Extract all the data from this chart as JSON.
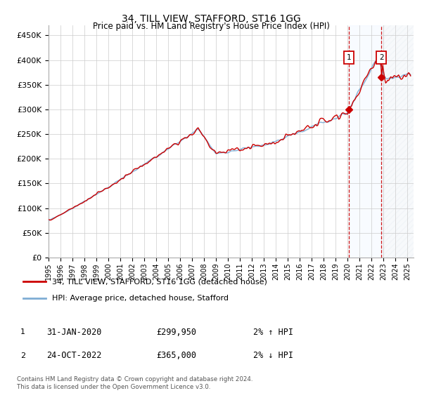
{
  "title": "34, TILL VIEW, STAFFORD, ST16 1GG",
  "subtitle": "Price paid vs. HM Land Registry's House Price Index (HPI)",
  "ylabel_ticks": [
    "£0",
    "£50K",
    "£100K",
    "£150K",
    "£200K",
    "£250K",
    "£300K",
    "£350K",
    "£400K",
    "£450K"
  ],
  "ytick_values": [
    0,
    50000,
    100000,
    150000,
    200000,
    250000,
    300000,
    350000,
    400000,
    450000
  ],
  "ylim": [
    0,
    470000
  ],
  "xlim_start": 1995.0,
  "xlim_end": 2025.5,
  "xtick_years": [
    1995,
    1996,
    1997,
    1998,
    1999,
    2000,
    2001,
    2002,
    2003,
    2004,
    2005,
    2006,
    2007,
    2008,
    2009,
    2010,
    2011,
    2012,
    2013,
    2014,
    2015,
    2016,
    2017,
    2018,
    2019,
    2020,
    2021,
    2022,
    2023,
    2024,
    2025
  ],
  "sale1_x": 2020.08,
  "sale1_y": 299950,
  "sale1_label": "31-JAN-2020",
  "sale1_price": "£299,950",
  "sale1_hpi": "2% ↑ HPI",
  "sale2_x": 2022.81,
  "sale2_y": 365000,
  "sale2_label": "24-OCT-2022",
  "sale2_price": "£365,000",
  "sale2_hpi": "2% ↓ HPI",
  "line1_color": "#cc0000",
  "line2_color": "#7eadd4",
  "highlight_color": "#ddeeff",
  "grid_color": "#cccccc",
  "legend_line1": "34, TILL VIEW, STAFFORD, ST16 1GG (detached house)",
  "legend_line2": "HPI: Average price, detached house, Stafford",
  "footer": "Contains HM Land Registry data © Crown copyright and database right 2024.\nThis data is licensed under the Open Government Licence v3.0.",
  "annotation_box_color": "#cc0000",
  "marker_color": "#cc0000",
  "hatch_color": "#cccccc"
}
